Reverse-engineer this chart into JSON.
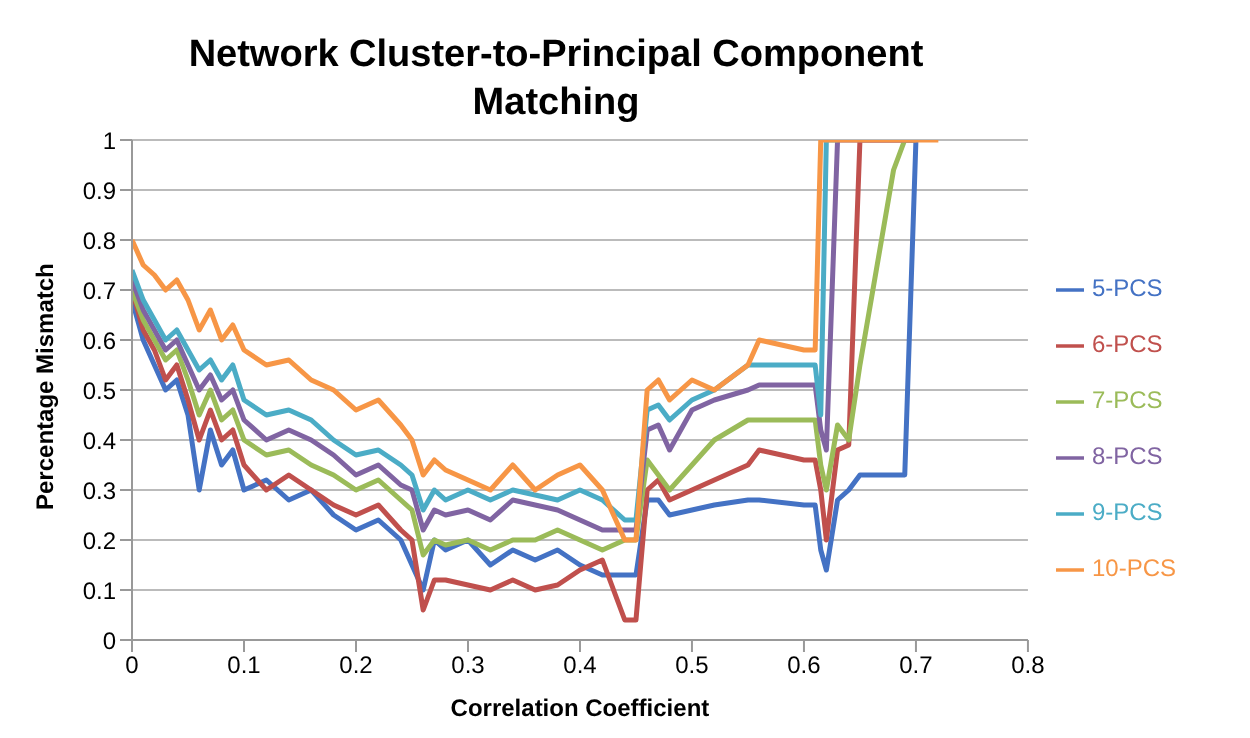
{
  "chart_data": {
    "type": "line",
    "title": "Network Cluster-to-Principal Component Matching",
    "xlabel": "Correlation Coefficient",
    "ylabel": "Percentage Mismatch",
    "x": [
      0,
      0.01,
      0.02,
      0.03,
      0.04,
      0.05,
      0.06,
      0.07,
      0.08,
      0.09,
      0.1,
      0.12,
      0.14,
      0.16,
      0.18,
      0.2,
      0.22,
      0.24,
      0.25,
      0.26,
      0.27,
      0.28,
      0.3,
      0.32,
      0.34,
      0.36,
      0.38,
      0.4,
      0.42,
      0.44,
      0.45,
      0.46,
      0.47,
      0.48,
      0.5,
      0.52,
      0.55,
      0.56,
      0.6,
      0.61,
      0.615,
      0.62,
      0.63,
      0.64,
      0.65,
      0.68,
      0.69,
      0.7,
      0.72
    ],
    "series": [
      {
        "name": "5-PCS",
        "color": "#4472c4",
        "values": [
          0.68,
          0.6,
          0.55,
          0.5,
          0.52,
          0.45,
          0.3,
          0.42,
          0.35,
          0.38,
          0.3,
          0.32,
          0.28,
          0.3,
          0.25,
          0.22,
          0.24,
          0.2,
          0.15,
          0.1,
          0.2,
          0.18,
          0.2,
          0.15,
          0.18,
          0.16,
          0.18,
          0.15,
          0.13,
          0.13,
          0.13,
          0.28,
          0.28,
          0.25,
          0.26,
          0.27,
          0.28,
          0.28,
          0.27,
          0.27,
          0.18,
          0.14,
          0.28,
          0.3,
          0.33,
          0.33,
          0.33,
          1,
          null
        ]
      },
      {
        "name": "6-PCS",
        "color": "#c0504d",
        "values": [
          0.7,
          0.62,
          0.58,
          0.52,
          0.55,
          0.48,
          0.4,
          0.46,
          0.4,
          0.42,
          0.35,
          0.3,
          0.33,
          0.3,
          0.27,
          0.25,
          0.27,
          0.22,
          0.2,
          0.06,
          0.12,
          0.12,
          0.11,
          0.1,
          0.12,
          0.1,
          0.11,
          0.14,
          0.16,
          0.04,
          0.04,
          0.3,
          0.32,
          0.28,
          0.3,
          0.32,
          0.35,
          0.38,
          0.36,
          0.36,
          0.3,
          0.2,
          0.38,
          0.39,
          1,
          1,
          1,
          1,
          null
        ]
      },
      {
        "name": "7-PCS",
        "color": "#9bbb59",
        "values": [
          0.7,
          0.64,
          0.6,
          0.56,
          0.58,
          0.52,
          0.45,
          0.5,
          0.44,
          0.46,
          0.4,
          0.37,
          0.38,
          0.35,
          0.33,
          0.3,
          0.32,
          0.28,
          0.26,
          0.17,
          0.2,
          0.19,
          0.2,
          0.18,
          0.2,
          0.2,
          0.22,
          0.2,
          0.18,
          0.2,
          0.2,
          0.36,
          0.33,
          0.3,
          0.35,
          0.4,
          0.44,
          0.44,
          0.44,
          0.44,
          0.35,
          0.3,
          0.43,
          0.4,
          0.55,
          0.94,
          1,
          1,
          null
        ]
      },
      {
        "name": "8-PCS",
        "color": "#8064a2",
        "values": [
          0.72,
          0.66,
          0.62,
          0.58,
          0.6,
          0.55,
          0.5,
          0.53,
          0.48,
          0.5,
          0.44,
          0.4,
          0.42,
          0.4,
          0.37,
          0.33,
          0.35,
          0.31,
          0.3,
          0.22,
          0.26,
          0.25,
          0.26,
          0.24,
          0.28,
          0.27,
          0.26,
          0.24,
          0.22,
          0.22,
          0.22,
          0.42,
          0.43,
          0.38,
          0.46,
          0.48,
          0.5,
          0.51,
          0.51,
          0.51,
          0.42,
          0.38,
          1,
          1,
          1,
          1,
          1,
          1,
          null
        ]
      },
      {
        "name": "9-PCS",
        "color": "#4bacc6",
        "values": [
          0.74,
          0.68,
          0.64,
          0.6,
          0.62,
          0.58,
          0.54,
          0.56,
          0.52,
          0.55,
          0.48,
          0.45,
          0.46,
          0.44,
          0.4,
          0.37,
          0.38,
          0.35,
          0.33,
          0.26,
          0.3,
          0.28,
          0.3,
          0.28,
          0.3,
          0.29,
          0.28,
          0.3,
          0.28,
          0.24,
          0.24,
          0.46,
          0.47,
          0.44,
          0.48,
          0.5,
          0.55,
          0.55,
          0.55,
          0.55,
          0.45,
          1,
          1,
          null,
          null,
          null,
          null,
          null,
          null
        ]
      },
      {
        "name": "10-PCS",
        "color": "#f79646",
        "values": [
          0.8,
          0.75,
          0.73,
          0.7,
          0.72,
          0.68,
          0.62,
          0.66,
          0.6,
          0.63,
          0.58,
          0.55,
          0.56,
          0.52,
          0.5,
          0.46,
          0.48,
          0.43,
          0.4,
          0.33,
          0.36,
          0.34,
          0.32,
          0.3,
          0.35,
          0.3,
          0.33,
          0.35,
          0.3,
          0.2,
          0.2,
          0.5,
          0.52,
          0.48,
          0.52,
          0.5,
          0.55,
          0.6,
          0.58,
          0.58,
          1,
          1,
          1,
          1,
          1,
          1,
          1,
          1,
          1
        ]
      }
    ],
    "xlim": [
      0,
      0.8
    ],
    "xticks": [
      0,
      0.1,
      0.2,
      0.3,
      0.4,
      0.5,
      0.6,
      0.7,
      0.8
    ],
    "ylim": [
      0,
      1
    ],
    "yticks": [
      0,
      0.1,
      0.2,
      0.3,
      0.4,
      0.5,
      0.6,
      0.7,
      0.8,
      0.9,
      1
    ],
    "grid": "y",
    "legend": "right",
    "marker": "none",
    "line_style": "solid"
  }
}
